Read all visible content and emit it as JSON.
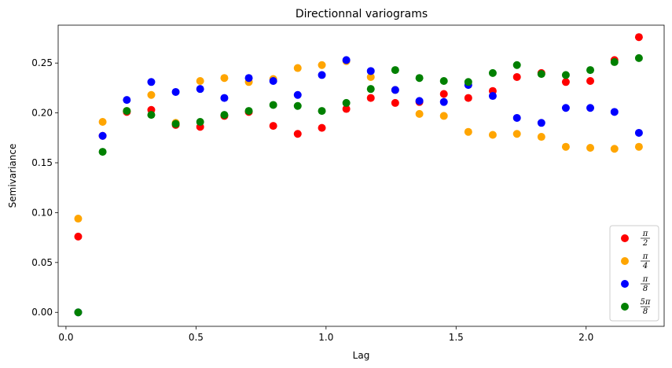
{
  "chart_data": {
    "type": "scatter",
    "title": "Directionnal variograms",
    "xlabel": "Lag",
    "ylabel": "Semivariance",
    "xlim": [
      -0.03,
      2.3
    ],
    "ylim": [
      -0.014,
      0.288
    ],
    "x_ticks": [
      0.0,
      0.5,
      1.0,
      1.5,
      2.0
    ],
    "x_tick_labels": [
      "0.0",
      "0.5",
      "1.0",
      "1.5",
      "2.0"
    ],
    "y_ticks": [
      0.0,
      0.05,
      0.1,
      0.15,
      0.2,
      0.25
    ],
    "y_tick_labels": [
      "0.00",
      "0.05",
      "0.10",
      "0.15",
      "0.20",
      "0.25"
    ],
    "grid": false,
    "legend_position": "lower-right",
    "x": [
      0.047,
      0.141,
      0.234,
      0.328,
      0.422,
      0.516,
      0.609,
      0.703,
      0.797,
      0.891,
      0.984,
      1.078,
      1.172,
      1.266,
      1.359,
      1.453,
      1.547,
      1.641,
      1.734,
      1.828,
      1.922,
      2.016,
      2.109,
      2.203
    ],
    "series": [
      {
        "name": "π/2",
        "legend_num": "π",
        "legend_den": "2",
        "color": "#ff0000",
        "values": [
          0.076,
          0.177,
          0.201,
          0.203,
          0.188,
          0.186,
          0.197,
          0.201,
          0.187,
          0.179,
          0.185,
          0.204,
          0.215,
          0.21,
          0.211,
          0.219,
          0.215,
          0.222,
          0.236,
          0.24,
          0.231,
          0.232,
          0.253,
          0.276
        ]
      },
      {
        "name": "π/4",
        "legend_num": "π",
        "legend_den": "4",
        "color": "#ffa500",
        "values": [
          0.094,
          0.191,
          0.202,
          0.218,
          0.19,
          0.232,
          0.235,
          0.231,
          0.234,
          0.245,
          0.248,
          0.252,
          0.236,
          0.223,
          0.199,
          0.197,
          0.181,
          0.178,
          0.179,
          0.176,
          0.166,
          0.165,
          0.164,
          0.166
        ]
      },
      {
        "name": "π/8",
        "legend_num": "π",
        "legend_den": "8",
        "color": "#0000ff",
        "values": [
          0.0,
          0.177,
          0.213,
          0.231,
          0.221,
          0.224,
          0.215,
          0.235,
          0.232,
          0.218,
          0.238,
          0.253,
          0.242,
          0.223,
          0.212,
          0.211,
          0.228,
          0.217,
          0.195,
          0.19,
          0.205,
          0.205,
          0.201,
          0.18
        ]
      },
      {
        "name": "5π/8",
        "legend_num": "5π",
        "legend_den": "8",
        "color": "#008000",
        "values": [
          0.0,
          0.161,
          0.202,
          0.198,
          0.189,
          0.191,
          0.198,
          0.202,
          0.208,
          0.207,
          0.202,
          0.21,
          0.224,
          0.243,
          0.235,
          0.232,
          0.231,
          0.24,
          0.248,
          0.239,
          0.238,
          0.243,
          0.251,
          0.255
        ]
      }
    ]
  }
}
